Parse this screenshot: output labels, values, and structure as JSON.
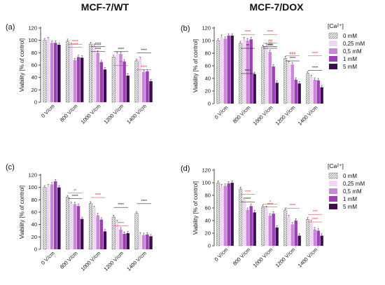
{
  "header": {
    "left_title": "MCF-7/WT",
    "right_title": "MCF-7/DOX"
  },
  "legend_top": {
    "title": "[Ca²⁺]",
    "entries": [
      "0 mM",
      "0,25 mM",
      "0,5 mM",
      "1 mM",
      "5 mM"
    ]
  },
  "legend_bottom": {
    "title": "[Ca²⁺]",
    "entries": [
      "0 mM",
      "0,25 mM",
      "0,5 mM",
      "1 mM",
      "5 mM"
    ]
  },
  "colors": {
    "hatch_0mM": "#9a9a9a",
    "c025": "#f0d8f4",
    "c05": "#c987d8",
    "c1": "#9b3fb3",
    "c5": "#3f0d52",
    "sig_black": "#000000",
    "sig_red": "#e0282e"
  },
  "chart_data": [
    {
      "panel": "(a)",
      "type": "bar",
      "ylabel": "Viability [% of control]",
      "ylim": [
        0,
        120
      ],
      "yticks": [
        0,
        20,
        40,
        60,
        80,
        100,
        120
      ],
      "categories": [
        "0 V/cm",
        "800 V/cm",
        "1000 V/cm",
        "1200 V/cm",
        "1400 V/cm"
      ],
      "series": [
        {
          "name": "0 mM",
          "values": [
            100,
            99,
            94,
            73,
            67
          ]
        },
        {
          "name": "0,25 mM",
          "values": [
            102,
            93,
            91,
            78,
            70
          ]
        },
        {
          "name": "0,5 mM",
          "values": [
            96,
            68,
            80,
            78,
            49
          ]
        },
        {
          "name": "1 mM",
          "values": [
            96,
            73,
            65,
            66,
            50
          ]
        },
        {
          "name": "5 mM",
          "values": [
            93,
            72,
            53,
            43,
            34
          ]
        }
      ],
      "annotations": [
        {
          "text": "****",
          "color": "red",
          "cat": 1,
          "level": 96
        },
        {
          "text": "****",
          "color": "red",
          "cat": 1,
          "level": 91
        },
        {
          "text": "###",
          "color": "black",
          "cat": 2,
          "level": 92
        },
        {
          "text": "****",
          "color": "black",
          "cat": 2,
          "level": 84
        },
        {
          "text": "****",
          "color": "black",
          "cat": 3,
          "level": 84
        },
        {
          "text": "**",
          "color": "red",
          "cat": 3,
          "level": 62
        },
        {
          "text": "****",
          "color": "black",
          "cat": 4,
          "level": 82
        },
        {
          "text": "****",
          "color": "red",
          "cat": 4,
          "level": 55
        }
      ]
    },
    {
      "panel": "(b)",
      "type": "bar",
      "ylabel": "Viability [% of control]",
      "ylim": [
        0,
        120
      ],
      "yticks": [
        0,
        20,
        40,
        60,
        80,
        100,
        120
      ],
      "categories": [
        "0 V/cm",
        "800 V/cm",
        "1000 V/cm",
        "1200 V/cm",
        "1400 V/cm"
      ],
      "series": [
        {
          "name": "0 mM",
          "values": [
            100,
            96,
            90,
            72,
            48
          ]
        },
        {
          "name": "0,25 mM",
          "values": [
            106,
            102,
            92,
            64,
            42
          ]
        },
        {
          "name": "0,5 mM",
          "values": [
            103,
            100,
            82,
            62,
            38
          ]
        },
        {
          "name": "1 mM",
          "values": [
            108,
            102,
            59,
            38,
            37
          ]
        },
        {
          "name": "5 mM",
          "values": [
            108,
            47,
            33,
            32,
            26
          ]
        }
      ],
      "annotations": [
        {
          "text": "****",
          "color": "red",
          "cat": 1,
          "level": 112
        },
        {
          "text": "**",
          "color": "black",
          "cat": 1,
          "level": 90
        },
        {
          "text": "****",
          "color": "black",
          "cat": 1,
          "level": 50
        },
        {
          "text": "****",
          "color": "red",
          "cat": 2,
          "level": 112
        },
        {
          "text": "##",
          "color": "red",
          "cat": 2,
          "level": 98
        },
        {
          "text": "##",
          "color": "black",
          "cat": 2,
          "level": 93
        },
        {
          "text": "****",
          "color": "black",
          "cat": 2,
          "level": 90
        },
        {
          "text": "###",
          "color": "red",
          "cat": 3,
          "level": 78
        },
        {
          "text": "****",
          "color": "black",
          "cat": 3,
          "level": 70
        },
        {
          "text": "****",
          "color": "red",
          "cat": 4,
          "level": 78
        },
        {
          "text": "****",
          "color": "black",
          "cat": 4,
          "level": 55
        }
      ]
    },
    {
      "panel": "(c)",
      "type": "bar",
      "ylabel": "Viability [% of control]",
      "ylim": [
        0,
        120
      ],
      "yticks": [
        0,
        20,
        40,
        60,
        80,
        100,
        120
      ],
      "categories": [
        "0 V/cm",
        "800 V/cm",
        "1000 V/cm",
        "1200 V/cm",
        "1400 V/cm"
      ],
      "series": [
        {
          "name": "0 mM",
          "values": [
            100,
            84,
            74,
            52,
            58
          ]
        },
        {
          "name": "0,25 mM",
          "values": [
            102,
            73,
            67,
            44,
            24
          ]
        },
        {
          "name": "0,5 mM",
          "values": [
            105,
            73,
            55,
            32,
            23
          ]
        },
        {
          "name": "1 mM",
          "values": [
            110,
            70,
            48,
            25,
            24
          ]
        },
        {
          "name": "5 mM",
          "values": [
            100,
            49,
            29,
            26,
            21
          ]
        }
      ],
      "annotations": [
        {
          "text": "**",
          "color": "red",
          "cat": 1,
          "level": 93
        },
        {
          "text": "****",
          "color": "black",
          "cat": 1,
          "level": 84
        },
        {
          "text": "****",
          "color": "red",
          "cat": 2,
          "level": 86
        },
        {
          "text": "****",
          "color": "black",
          "cat": 3,
          "level": 70
        },
        {
          "text": "****",
          "color": "red",
          "cat": 3,
          "level": 40
        },
        {
          "text": "****",
          "color": "black",
          "cat": 4,
          "level": 76
        }
      ]
    },
    {
      "panel": "(d)",
      "type": "bar",
      "ylabel": "Viability [% of control]",
      "ylim": [
        0,
        120
      ],
      "yticks": [
        0,
        20,
        40,
        60,
        80,
        100,
        120
      ],
      "categories": [
        "0 V/cm",
        "800 V/cm",
        "1000 V/cm",
        "1200 V/cm",
        "1400 V/cm"
      ],
      "series": [
        {
          "name": "0 mM",
          "values": [
            100,
            90,
            62,
            57,
            42
          ]
        },
        {
          "name": "0,25 mM",
          "values": [
            94,
            73,
            60,
            45,
            38
          ]
        },
        {
          "name": "0,5 mM",
          "values": [
            95,
            57,
            48,
            34,
            26
          ]
        },
        {
          "name": "1 mM",
          "values": [
            99,
            63,
            51,
            40,
            24
          ]
        },
        {
          "name": "5 mM",
          "values": [
            100,
            53,
            29,
            16,
            16
          ]
        }
      ],
      "annotations": [
        {
          "text": "****",
          "color": "red",
          "cat": 1,
          "level": 84
        },
        {
          "text": "****",
          "color": "black",
          "cat": 1,
          "level": 72
        },
        {
          "text": "*",
          "color": "red",
          "cat": 2,
          "level": 68
        },
        {
          "text": "****",
          "color": "red",
          "cat": 2,
          "level": 64
        },
        {
          "text": "****",
          "color": "red",
          "cat": 3,
          "level": 62
        },
        {
          "text": "***",
          "color": "red",
          "cat": 4,
          "level": 52
        },
        {
          "text": "****",
          "color": "red",
          "cat": 4,
          "level": 40
        }
      ]
    }
  ]
}
